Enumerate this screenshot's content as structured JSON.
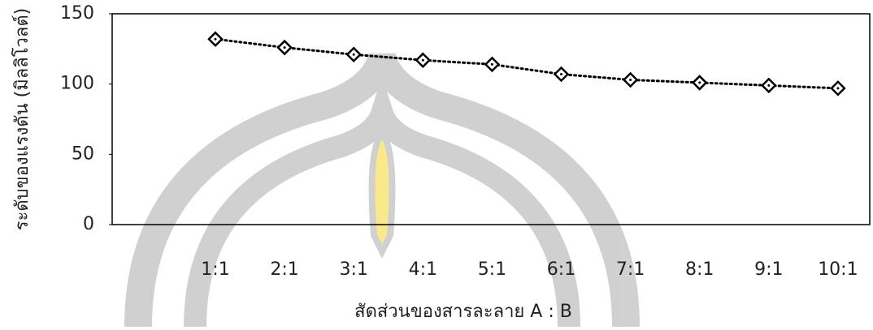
{
  "chart_data": {
    "type": "line",
    "x_label": "สัดส่วนของสารละลาย A : B",
    "y_label": "ระดับของแรงดัน (มิลลิโวลต์)",
    "categories": [
      "1:1",
      "2:1",
      "3:1",
      "4:1",
      "5:1",
      "6:1",
      "7:1",
      "8:1",
      "9:1",
      "10:1"
    ],
    "series": [
      {
        "color": "#000000",
        "values": [
          132,
          126,
          121,
          117,
          114,
          107,
          103,
          101,
          99,
          97
        ]
      }
    ],
    "ylim": [
      0,
      150
    ],
    "yticks": [
      0,
      50,
      100,
      150
    ]
  }
}
